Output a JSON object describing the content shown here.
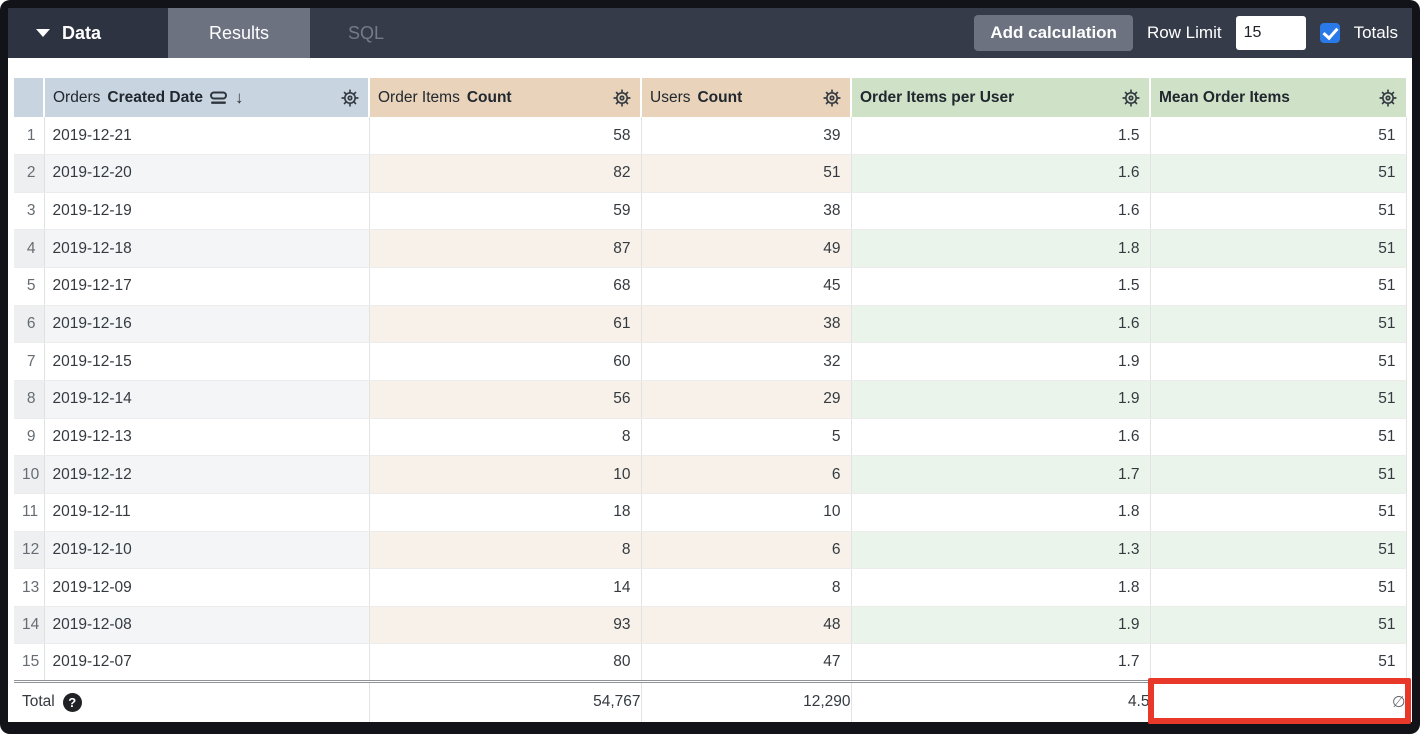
{
  "toolbar": {
    "data_label": "Data",
    "tabs": [
      {
        "label": "Results",
        "active": true
      },
      {
        "label": "SQL",
        "active": false
      }
    ],
    "add_calculation_label": "Add calculation",
    "row_limit_label": "Row Limit",
    "row_limit_value": "15",
    "totals_label": "Totals",
    "totals_checked": true
  },
  "icons": {
    "caret": "caret-down",
    "sort_desc": "↓",
    "gear": "gear-outline",
    "group": "date-group",
    "help": "?",
    "check": "✓",
    "null_symbol": "∅"
  },
  "colors": {
    "topbar": "#353b48",
    "data_section": "#2d3340",
    "active_tab": "#6c7280",
    "dimension_header": "#c8d4e0",
    "measure_header": "#e9d3ba",
    "calculation_header": "#cfe2c8",
    "checkbox_blue": "#2979e8",
    "highlight_red": "#e8382a"
  },
  "table": {
    "columns": [
      {
        "type": "dimension",
        "label_regular": "Orders",
        "label_bold": "Created Date",
        "sorted": "desc"
      },
      {
        "type": "measure",
        "label_regular": "Order Items",
        "label_bold": "Count"
      },
      {
        "type": "measure",
        "label_regular": "Users",
        "label_bold": "Count"
      },
      {
        "type": "calculation",
        "label_regular": "",
        "label_bold": "Order Items per User"
      },
      {
        "type": "calculation",
        "label_regular": "",
        "label_bold": "Mean Order Items"
      }
    ],
    "rows": [
      {
        "num": "1",
        "date": "2019-12-21",
        "order_items_count": "58",
        "users_count": "39",
        "order_items_per_user": "1.5",
        "mean_order_items": "51"
      },
      {
        "num": "2",
        "date": "2019-12-20",
        "order_items_count": "82",
        "users_count": "51",
        "order_items_per_user": "1.6",
        "mean_order_items": "51"
      },
      {
        "num": "3",
        "date": "2019-12-19",
        "order_items_count": "59",
        "users_count": "38",
        "order_items_per_user": "1.6",
        "mean_order_items": "51"
      },
      {
        "num": "4",
        "date": "2019-12-18",
        "order_items_count": "87",
        "users_count": "49",
        "order_items_per_user": "1.8",
        "mean_order_items": "51"
      },
      {
        "num": "5",
        "date": "2019-12-17",
        "order_items_count": "68",
        "users_count": "45",
        "order_items_per_user": "1.5",
        "mean_order_items": "51"
      },
      {
        "num": "6",
        "date": "2019-12-16",
        "order_items_count": "61",
        "users_count": "38",
        "order_items_per_user": "1.6",
        "mean_order_items": "51"
      },
      {
        "num": "7",
        "date": "2019-12-15",
        "order_items_count": "60",
        "users_count": "32",
        "order_items_per_user": "1.9",
        "mean_order_items": "51"
      },
      {
        "num": "8",
        "date": "2019-12-14",
        "order_items_count": "56",
        "users_count": "29",
        "order_items_per_user": "1.9",
        "mean_order_items": "51"
      },
      {
        "num": "9",
        "date": "2019-12-13",
        "order_items_count": "8",
        "users_count": "5",
        "order_items_per_user": "1.6",
        "mean_order_items": "51"
      },
      {
        "num": "10",
        "date": "2019-12-12",
        "order_items_count": "10",
        "users_count": "6",
        "order_items_per_user": "1.7",
        "mean_order_items": "51"
      },
      {
        "num": "11",
        "date": "2019-12-11",
        "order_items_count": "18",
        "users_count": "10",
        "order_items_per_user": "1.8",
        "mean_order_items": "51"
      },
      {
        "num": "12",
        "date": "2019-12-10",
        "order_items_count": "8",
        "users_count": "6",
        "order_items_per_user": "1.3",
        "mean_order_items": "51"
      },
      {
        "num": "13",
        "date": "2019-12-09",
        "order_items_count": "14",
        "users_count": "8",
        "order_items_per_user": "1.8",
        "mean_order_items": "51"
      },
      {
        "num": "14",
        "date": "2019-12-08",
        "order_items_count": "93",
        "users_count": "48",
        "order_items_per_user": "1.9",
        "mean_order_items": "51"
      },
      {
        "num": "15",
        "date": "2019-12-07",
        "order_items_count": "80",
        "users_count": "47",
        "order_items_per_user": "1.7",
        "mean_order_items": "51"
      }
    ],
    "total": {
      "label": "Total",
      "order_items_count": "54,767",
      "users_count": "12,290",
      "order_items_per_user": "4.5",
      "mean_order_items": "∅"
    }
  }
}
